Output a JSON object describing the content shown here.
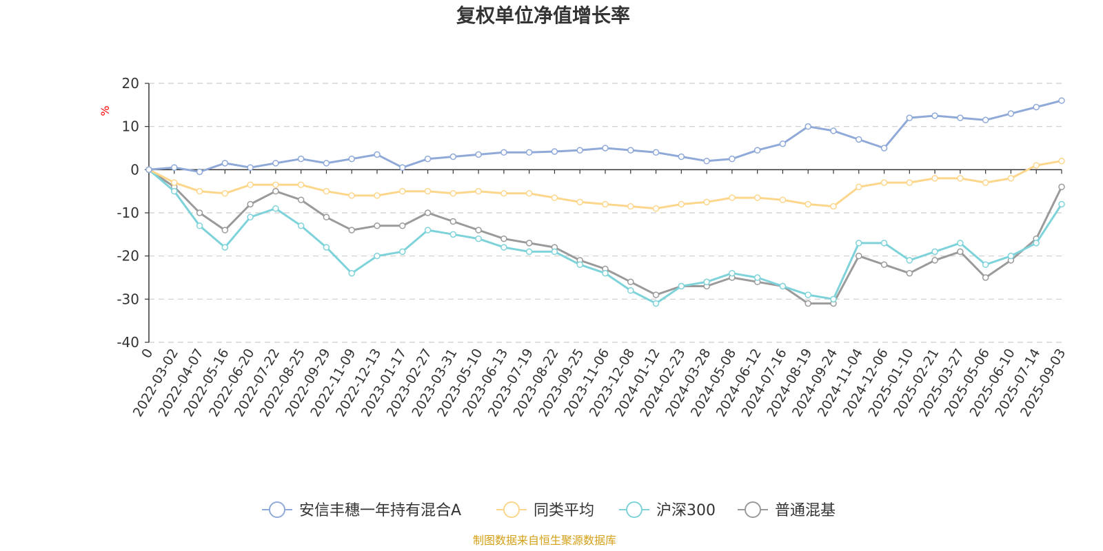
{
  "chart_data": {
    "type": "line",
    "title": "复权单位净值增长率",
    "ylabel": "%",
    "ylim": [
      -40,
      20
    ],
    "yticks": [
      20,
      10,
      0,
      -10,
      -20,
      -30,
      -40
    ],
    "grid": true,
    "legend_position": "bottom",
    "x_labels": [
      "0",
      "2022-03-02",
      "2022-04-07",
      "2022-05-16",
      "2022-06-20",
      "2022-07-22",
      "2022-08-25",
      "2022-09-29",
      "2022-11-09",
      "2022-12-13",
      "2023-01-17",
      "2023-02-27",
      "2023-03-31",
      "2023-05-10",
      "2023-06-13",
      "2023-07-19",
      "2023-08-22",
      "2023-09-25",
      "2023-11-06",
      "2023-12-08",
      "2024-01-12",
      "2024-02-23",
      "2024-03-28",
      "2024-05-08",
      "2024-06-12",
      "2024-07-16",
      "2024-08-19",
      "2024-09-24",
      "2024-11-04",
      "2024-12-06",
      "2025-01-10",
      "2025-02-21",
      "2025-03-27",
      "2025-05-06",
      "2025-06-10",
      "2025-07-14",
      "2025-09-03"
    ],
    "series": [
      {
        "name": "安信丰穗一年持有混合A",
        "color": "#8fa9d8",
        "values": [
          0,
          0.5,
          -0.5,
          1.5,
          0.5,
          1.5,
          2.5,
          1.5,
          2.5,
          3.5,
          0.5,
          2.5,
          3,
          3.5,
          4,
          4,
          4.2,
          4.5,
          5,
          4.5,
          4,
          3,
          2,
          2.5,
          4.5,
          6,
          10,
          9,
          7,
          5,
          12,
          12.5,
          12,
          11.5,
          13,
          14.5,
          16
        ]
      },
      {
        "name": "同类平均",
        "color": "#fcd68b",
        "values": [
          0,
          -3,
          -5,
          -5.5,
          -3.5,
          -3.5,
          -3.5,
          -5,
          -6,
          -6,
          -5,
          -5,
          -5.5,
          -5,
          -5.5,
          -5.5,
          -6.5,
          -7.5,
          -8,
          -8.5,
          -9,
          -8,
          -7.5,
          -6.5,
          -6.5,
          -7,
          -8,
          -8.5,
          -4,
          -3,
          -3,
          -2,
          -2,
          -3,
          -2,
          1,
          2
        ]
      },
      {
        "name": "沪深300",
        "color": "#7ed3da",
        "values": [
          0,
          -5,
          -13,
          -18,
          -11,
          -9,
          -13,
          -18,
          -24,
          -20,
          -19,
          -14,
          -15,
          -16,
          -18,
          -19,
          -19,
          -22,
          -24,
          -28,
          -31,
          -27,
          -26,
          -24,
          -25,
          -27,
          -29,
          -30,
          -17,
          -17,
          -21,
          -19,
          -17,
          -22,
          -20,
          -17,
          -8
        ]
      },
      {
        "name": "普通混基",
        "color": "#9a9a9a",
        "values": [
          0,
          -4,
          -10,
          -14,
          -8,
          -5,
          -7,
          -11,
          -14,
          -13,
          -13,
          -10,
          -12,
          -14,
          -16,
          -17,
          -18,
          -21,
          -23,
          -26,
          -29,
          -27,
          -27,
          -25,
          -26,
          -27,
          -31,
          -31,
          -20,
          -22,
          -24,
          -21,
          -19,
          -25,
          -21,
          -16,
          -4
        ]
      }
    ],
    "source": "制图数据来自恒生聚源数据库",
    "title_color": "#333333",
    "unit_color": "#ff0000",
    "source_color": "#d4a017",
    "grid_color": "#cccccc"
  }
}
